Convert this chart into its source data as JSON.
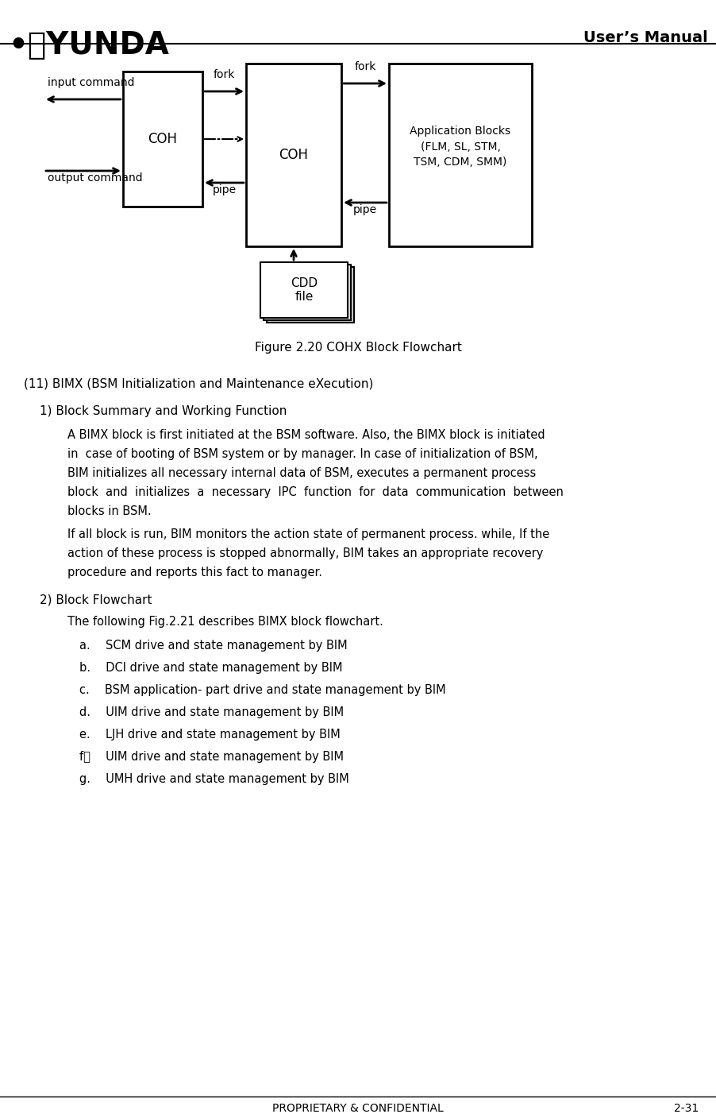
{
  "page_width": 9.02,
  "page_height": 14.02,
  "bg_color": "#ffffff",
  "header_title": "User’s Manual",
  "footer_text": "PROPRIETARY & CONFIDENTIAL",
  "footer_page": "2-31",
  "figure_caption": "Figure 2.20 COHX Block Flowchart",
  "section_heading": "(11) BIMX (BSM Initialization and Maintenance eXecution)",
  "subsection1": "1) Block Summary and Working Function",
  "para1": "A BIMX block is first initiated at the BSM software. Also, the BIMX block is initiated\nin  case of booting of BSM system or by manager. In case of initialization of BSM,\nBIM initializes all necessary internal data of BSM, executes a permanent process\nblock  and  initializes  a  necessary  IPC  function  for  data  communication  between\nblocks in BSM.",
  "para2": "If all block is run, BIM monitors the action state of permanent process. while, If the\naction of these process is stopped abnormally, BIM takes an appropriate recovery\nprocedure and reports this fact to manager.",
  "subsection2": "2) Block Flowchart",
  "para3": "The following Fig.2.21 describes BIMX block flowchart.",
  "list_items": [
    "a.  SCM drive and state management by BIM",
    "b.  DCI drive and state management by BIM",
    "c.  BSM application- part drive and state management by BIM",
    "d.  UIM drive and state management by BIM",
    "e.  LJH drive and state management by BIM",
    "f．  UIM drive and state management by BIM",
    "g.  UMH drive and state management by BIM"
  ]
}
